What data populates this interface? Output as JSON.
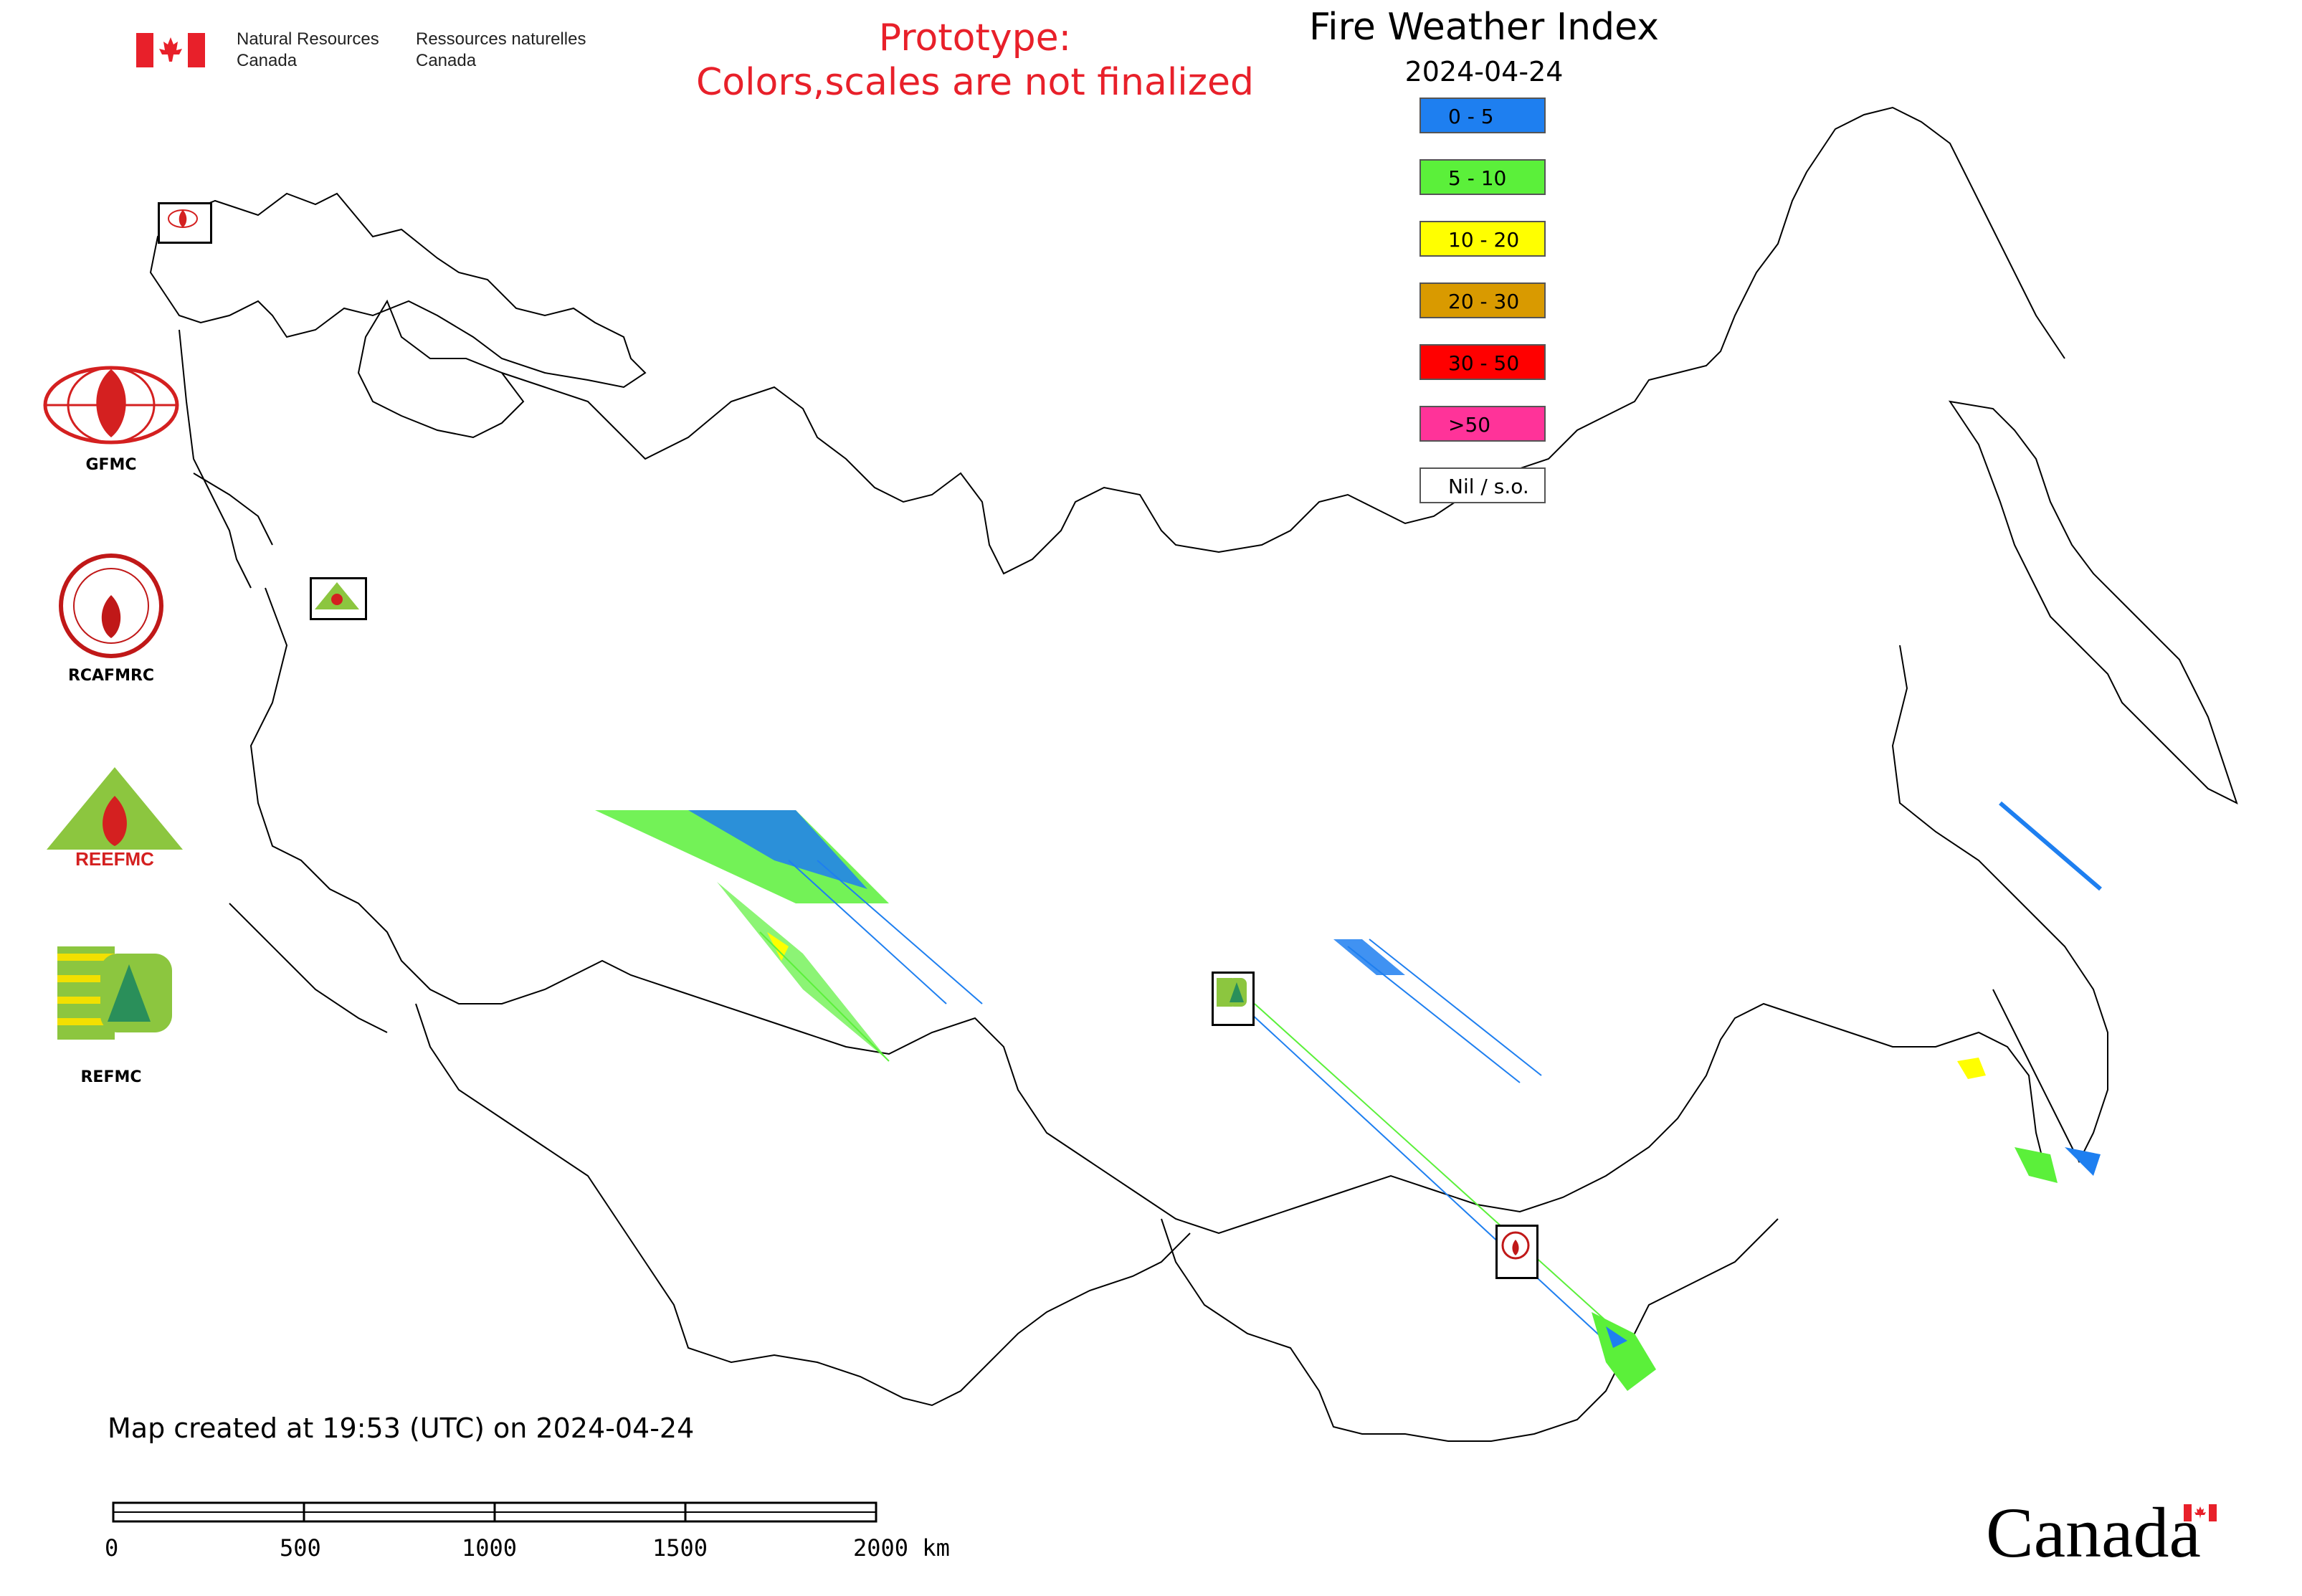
{
  "header": {
    "org_en_line1": "Natural Resources",
    "org_en_line2": "Canada",
    "org_fr_line1": "Ressources naturelles",
    "org_fr_line2": "Canada",
    "prototype_line1": "Prototype:",
    "prototype_line2": "Colors,scales are not finalized",
    "title": "Fire Weather Index",
    "date": "2024-04-24"
  },
  "legend": [
    {
      "label": "0 - 5",
      "color": "#1e7ff0"
    },
    {
      "label": "5 - 10",
      "color": "#5bf03a"
    },
    {
      "label": "10 - 20",
      "color": "#ffff00"
    },
    {
      "label": "20 - 30",
      "color": "#d99a00"
    },
    {
      "label": "30 - 50",
      "color": "#ff0000"
    },
    {
      "label": ">50",
      "color": "#ff3399"
    },
    {
      "label": "Nil / s.o.",
      "color": "#ffffff"
    }
  ],
  "logos": [
    {
      "caption": "GFMC",
      "icon": "gfmc-logo"
    },
    {
      "caption": "RCAFMRC",
      "icon": "rcafmrc-logo"
    },
    {
      "caption": "",
      "icon": "reefmc-logo",
      "wordmark": "REEFMC"
    },
    {
      "caption": "REFMC",
      "icon": "refmc-logo"
    }
  ],
  "map_markers": [
    {
      "name": "gfmc-marker",
      "label": "GFMC"
    },
    {
      "name": "reefmc-marker",
      "label": "REEFMC"
    },
    {
      "name": "refmc-marker",
      "label": "REFMC"
    },
    {
      "name": "rcafmrc-marker",
      "label": "RCAFMRC"
    }
  ],
  "footer": {
    "created": "Map created at 19:53 (UTC) on 2024-04-24",
    "scale_labels": [
      "0",
      "500",
      "1000",
      "1500",
      "2000 km"
    ],
    "wordmark": "Canada"
  },
  "colors": {
    "boundary": "#000000",
    "low": "#1e7ff0",
    "moderate": "#5bf03a",
    "high": "#ffff00",
    "notice": "#e8202a"
  }
}
